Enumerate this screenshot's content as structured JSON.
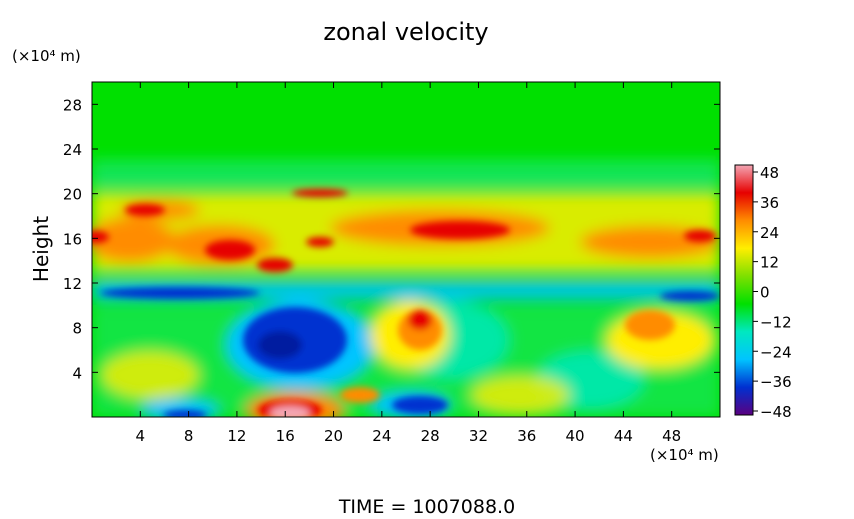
{
  "chart_data": {
    "type": "heatmap",
    "title": "zonal velocity",
    "ylabel": "Height",
    "y_unit": "(×10⁴ m)",
    "x_unit": "(×10⁴ m)",
    "xlim": [
      0,
      52
    ],
    "ylim": [
      0,
      30
    ],
    "x_ticks": [
      "4",
      "8",
      "12",
      "16",
      "20",
      "24",
      "28",
      "32",
      "36",
      "40",
      "44",
      "48"
    ],
    "y_ticks": [
      "4",
      "8",
      "12",
      "16",
      "20",
      "24",
      "28"
    ],
    "colorbar": {
      "range": [
        -48,
        48
      ],
      "tick_labels": [
        "48",
        "36",
        "24",
        "12",
        "0",
        "−12",
        "−24",
        "−36",
        "−48"
      ],
      "stops": [
        "#f4a6b4",
        "#e60000",
        "#ff8c00",
        "#ffee00",
        "#7ee000",
        "#00e000",
        "#00e8c0",
        "#00c4ff",
        "#0030d0",
        "#5a0080"
      ]
    },
    "features": [
      {
        "x": 2,
        "y": 16,
        "value": 30
      },
      {
        "x": 12,
        "y": 16,
        "value": 36
      },
      {
        "x": 20,
        "y": 20,
        "value": 40
      },
      {
        "x": 30,
        "y": 16.5,
        "value": 40
      },
      {
        "x": 46,
        "y": 16,
        "value": 36
      },
      {
        "x": 16.5,
        "y": 7,
        "value": -40
      },
      {
        "x": 28,
        "y": 8,
        "value": 30
      },
      {
        "x": 16,
        "y": 0.5,
        "value": 48
      },
      {
        "x": 27,
        "y": 1.5,
        "value": -36
      },
      {
        "x": 8,
        "y": 0.3,
        "value": -40
      },
      {
        "x": 10,
        "y": 11,
        "value": -30
      },
      {
        "x": 46,
        "y": 11,
        "value": -30
      },
      {
        "x": 46,
        "y": 7,
        "value": 30
      }
    ]
  },
  "footer": {
    "time_label": "TIME  =  1007088.0"
  }
}
